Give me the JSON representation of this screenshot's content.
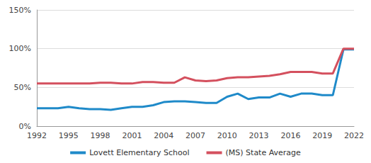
{
  "chart_data": {
    "type": "line",
    "x": [
      1992,
      1993,
      1994,
      1995,
      1996,
      1997,
      1998,
      1999,
      2000,
      2001,
      2002,
      2003,
      2004,
      2005,
      2006,
      2007,
      2008,
      2009,
      2010,
      2011,
      2012,
      2013,
      2014,
      2015,
      2016,
      2017,
      2018,
      2019,
      2020,
      2021,
      2022
    ],
    "series": [
      {
        "name": "Lovett Elementary School",
        "color": "#1f8ac9",
        "values": [
          23,
          23,
          23,
          25,
          23,
          22,
          22,
          21,
          23,
          25,
          25,
          27,
          31,
          32,
          32,
          31,
          30,
          30,
          38,
          42,
          35,
          37,
          37,
          42,
          38,
          42,
          42,
          40,
          40,
          99,
          99
        ]
      },
      {
        "name": "(MS) State Average",
        "color": "#d4505e",
        "values": [
          55,
          55,
          55,
          55,
          55,
          55,
          56,
          56,
          55,
          55,
          57,
          57,
          56,
          56,
          63,
          59,
          58,
          59,
          62,
          63,
          63,
          64,
          65,
          67,
          70,
          70,
          70,
          68,
          68,
          100,
          100
        ]
      }
    ],
    "xlim": [
      1992,
      2022
    ],
    "xticks": [
      1992,
      1995,
      1998,
      2001,
      2004,
      2007,
      2010,
      2013,
      2016,
      2019,
      2022
    ],
    "ylim": [
      0,
      150
    ],
    "yticks": [
      {
        "value": 0,
        "label": "0%"
      },
      {
        "value": 50,
        "label": "50%"
      },
      {
        "value": 100,
        "label": "100%"
      },
      {
        "value": 150,
        "label": "150%"
      }
    ],
    "grid": true,
    "legend": "bottom"
  }
}
